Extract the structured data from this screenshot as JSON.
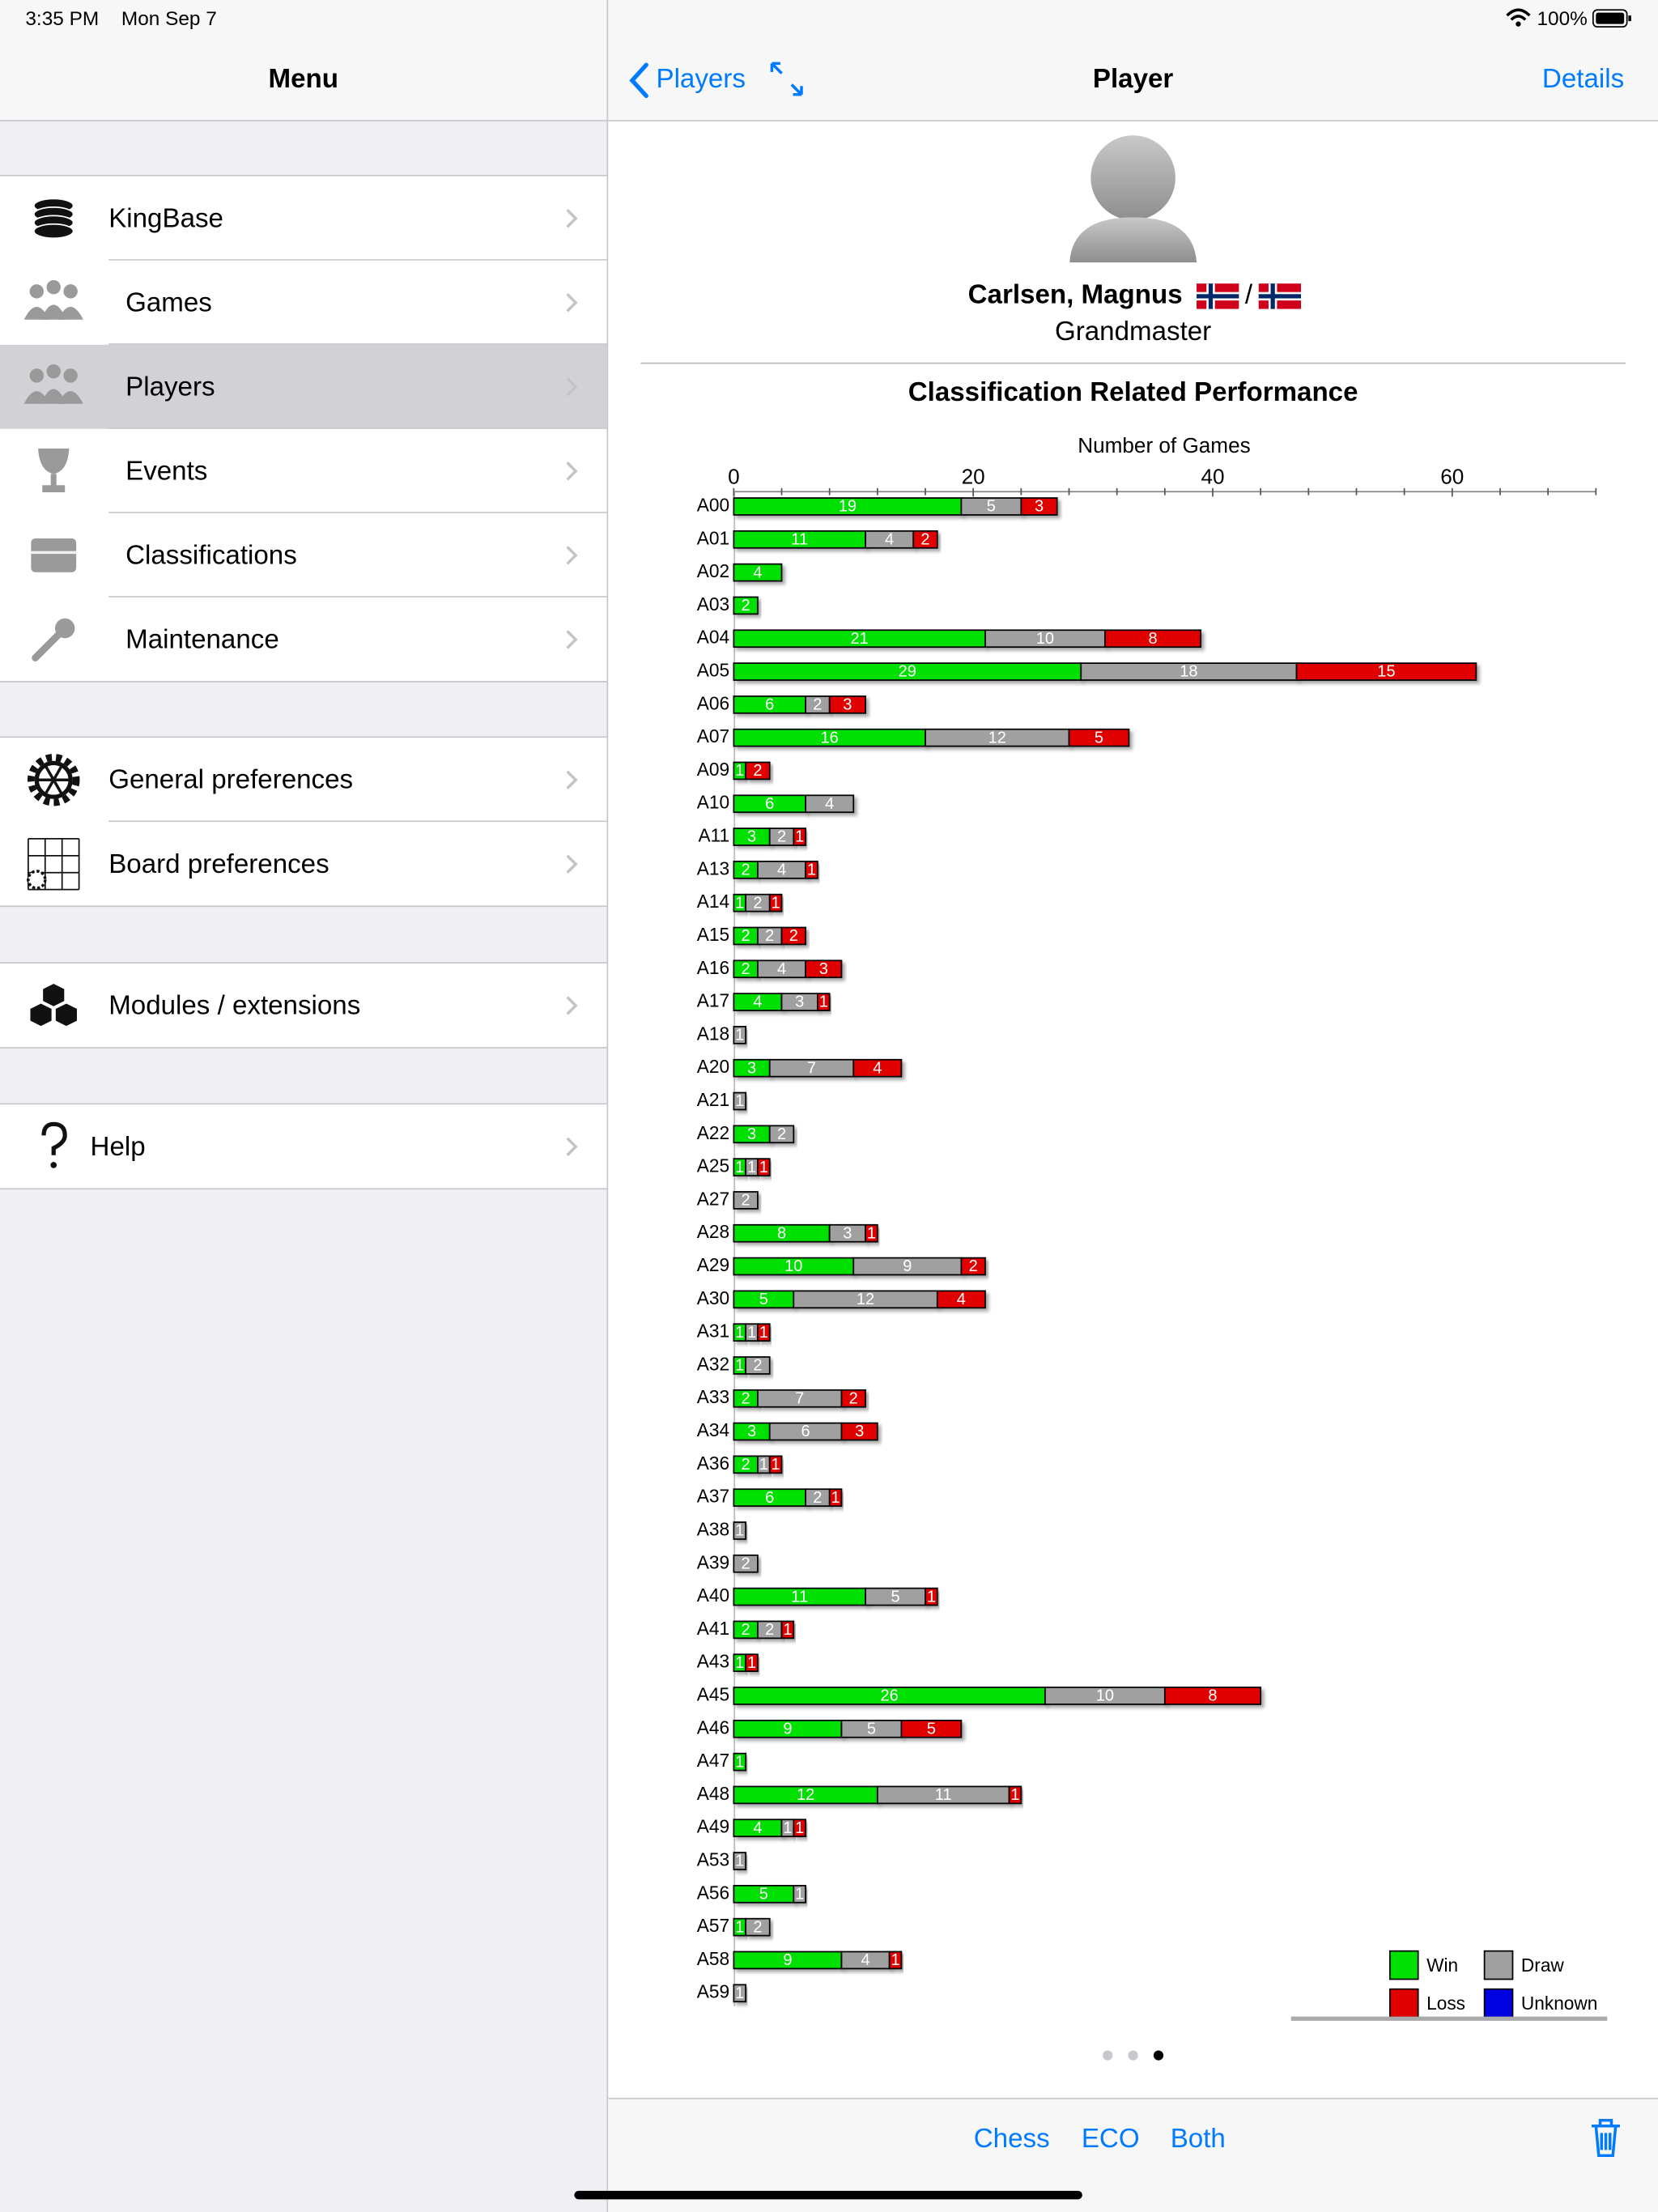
{
  "status_bar": {
    "time": "3:35 PM",
    "date": "Mon Sep 7",
    "battery": "100%"
  },
  "menu": {
    "title": "Menu",
    "groups": [
      [
        "KingBase",
        "Games",
        "Players",
        "Events",
        "Classifications",
        "Maintenance"
      ],
      [
        "General preferences",
        "Board preferences"
      ],
      [
        "Modules / extensions"
      ],
      [
        "Help"
      ]
    ]
  },
  "detail_nav": {
    "back": "Players",
    "title": "Player",
    "action": "Details"
  },
  "player": {
    "name": "Carlsen, Magnus",
    "separator": "/",
    "title": "Grandmaster"
  },
  "chart_data": {
    "type": "bar",
    "orientation": "horizontal",
    "stacked": true,
    "title": "Classification Related Performance",
    "x_label": "Number of Games",
    "categories": [
      "A00",
      "A01",
      "A02",
      "A03",
      "A04",
      "A05",
      "A06",
      "A07",
      "A09",
      "A10",
      "A11",
      "A13",
      "A14",
      "A15",
      "A16",
      "A17",
      "A18",
      "A20",
      "A21",
      "A22",
      "A25",
      "A27",
      "A28",
      "A29",
      "A30",
      "A31",
      "A32",
      "A33",
      "A34",
      "A36",
      "A37",
      "A38",
      "A39",
      "A40",
      "A41",
      "A43",
      "A45",
      "A46",
      "A47",
      "A48",
      "A49",
      "A53",
      "A56",
      "A57",
      "A58",
      "A59"
    ],
    "series": [
      {
        "name": "Win",
        "color": "#00e000",
        "values": [
          19,
          11,
          4,
          2,
          21,
          29,
          6,
          16,
          1,
          6,
          3,
          2,
          1,
          2,
          2,
          4,
          null,
          3,
          null,
          3,
          1,
          null,
          8,
          10,
          5,
          1,
          1,
          2,
          3,
          2,
          6,
          null,
          null,
          11,
          2,
          1,
          26,
          9,
          1,
          12,
          4,
          null,
          5,
          1,
          9,
          null
        ]
      },
      {
        "name": "Draw",
        "color": "#a0a0a0",
        "values": [
          5,
          4,
          null,
          null,
          10,
          18,
          2,
          12,
          null,
          4,
          2,
          4,
          2,
          2,
          4,
          3,
          1,
          7,
          1,
          2,
          1,
          2,
          3,
          9,
          12,
          1,
          2,
          7,
          6,
          1,
          2,
          1,
          2,
          5,
          2,
          null,
          10,
          5,
          null,
          11,
          1,
          1,
          1,
          2,
          4,
          1
        ]
      },
      {
        "name": "Loss",
        "color": "#e00000",
        "values": [
          3,
          2,
          null,
          null,
          8,
          15,
          3,
          5,
          2,
          null,
          1,
          1,
          1,
          2,
          3,
          1,
          null,
          4,
          null,
          null,
          1,
          null,
          1,
          2,
          4,
          1,
          null,
          2,
          3,
          1,
          1,
          null,
          null,
          1,
          1,
          1,
          8,
          5,
          null,
          1,
          1,
          null,
          null,
          null,
          1,
          null
        ]
      },
      {
        "name": "Unknown",
        "color": "#0000e0",
        "values": [
          null,
          null,
          null,
          null,
          null,
          null,
          null,
          null,
          null,
          null,
          null,
          null,
          null,
          null,
          null,
          null,
          null,
          null,
          null,
          null,
          null,
          null,
          null,
          null,
          null,
          null,
          null,
          null,
          null,
          null,
          null,
          null,
          null,
          null,
          null,
          null,
          null,
          null,
          null,
          null,
          null,
          null,
          null,
          null,
          null,
          null
        ]
      }
    ],
    "xlim": [
      0,
      72
    ],
    "xticks": [
      0,
      20,
      40,
      60
    ],
    "x_minor_ticks": [
      4,
      8,
      12,
      16,
      24,
      28,
      32,
      36,
      44,
      48,
      52,
      56,
      64,
      68,
      72
    ],
    "legend": "lower right"
  },
  "toolbar": {
    "buttons": [
      "Chess",
      "ECO",
      "Both"
    ]
  }
}
